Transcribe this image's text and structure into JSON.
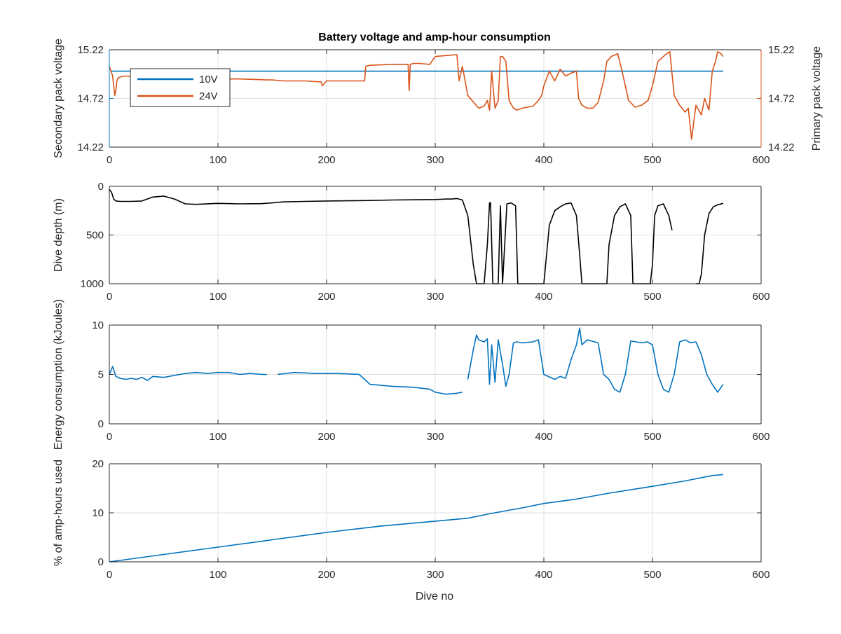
{
  "colors": {
    "blue": "#0072bd",
    "orange": "#d95319",
    "black": "#000000",
    "axis": "#262626",
    "grid": "#dfdfdf"
  },
  "title": "Battery voltage and amp-hour consumption",
  "xlabel": "Dive no",
  "chart_data": [
    {
      "type": "line",
      "title": "Battery voltage and amp-hour consumption",
      "xlim": [
        0,
        600
      ],
      "x_ticks": [
        "0",
        "100",
        "200",
        "300",
        "400",
        "500",
        "600"
      ],
      "ylabel_left": "Secondary pack voltage",
      "ylabel_right": "Primary pack voltage",
      "ylim_left": [
        14.22,
        15.22
      ],
      "ylim_right": [
        14.22,
        15.22
      ],
      "y_ticks_left": [
        "14.22",
        "14.72",
        "15.22"
      ],
      "y_ticks_right": [
        "14.22",
        "14.72",
        "15.22"
      ],
      "grid": true,
      "legend": {
        "location": "top-left",
        "entries": [
          "10V",
          "24V"
        ]
      },
      "series": [
        {
          "name": "10V",
          "axis": "left",
          "color": "#0072bd",
          "x": [
            1,
            565
          ],
          "y": [
            15.0,
            15.0
          ]
        },
        {
          "name": "24V",
          "axis": "right",
          "color": "#d95319",
          "x": [
            0,
            3,
            5,
            6,
            7,
            8,
            10,
            15,
            25,
            40,
            60,
            80,
            95,
            100,
            120,
            145,
            150,
            160,
            180,
            195,
            196,
            200,
            220,
            230,
            235,
            236,
            240,
            260,
            275,
            276,
            277,
            280,
            285,
            295,
            300,
            310,
            320,
            322,
            325,
            330,
            340,
            345,
            348,
            350,
            352,
            355,
            358,
            360,
            362,
            365,
            368,
            372,
            375,
            380,
            390,
            395,
            398,
            400,
            405,
            410,
            415,
            420,
            425,
            430,
            432,
            435,
            440,
            445,
            450,
            455,
            458,
            462,
            468,
            472,
            478,
            484,
            490,
            496,
            500,
            505,
            512,
            516,
            520,
            525,
            530,
            533,
            536,
            540,
            545,
            548,
            552,
            555,
            558,
            560,
            563,
            565
          ],
          "y": [
            15.05,
            14.95,
            14.75,
            14.8,
            14.9,
            14.93,
            14.94,
            14.95,
            14.94,
            14.93,
            14.94,
            14.93,
            14.91,
            14.92,
            14.92,
            14.91,
            14.91,
            14.9,
            14.9,
            14.89,
            14.85,
            14.9,
            14.9,
            14.9,
            14.9,
            15.05,
            15.06,
            15.07,
            15.07,
            14.8,
            15.07,
            15.08,
            15.08,
            15.07,
            15.15,
            15.16,
            15.17,
            14.9,
            15.05,
            14.75,
            14.62,
            14.64,
            14.7,
            14.6,
            15.0,
            14.62,
            14.7,
            15.15,
            15.15,
            15.1,
            14.7,
            14.62,
            14.6,
            14.62,
            14.64,
            14.7,
            14.75,
            14.85,
            15.0,
            14.9,
            15.02,
            14.95,
            14.98,
            15.0,
            14.72,
            14.65,
            14.62,
            14.62,
            14.68,
            14.9,
            15.1,
            15.15,
            15.18,
            15.0,
            14.7,
            14.63,
            14.65,
            14.7,
            14.85,
            15.1,
            15.17,
            15.2,
            14.75,
            14.65,
            14.58,
            14.62,
            14.3,
            14.65,
            14.55,
            14.72,
            14.6,
            15.0,
            15.1,
            15.2,
            15.18,
            15.15
          ]
        }
      ]
    },
    {
      "type": "line",
      "xlim": [
        0,
        600
      ],
      "x_ticks": [
        "0",
        "100",
        "200",
        "300",
        "400",
        "500",
        "600"
      ],
      "ylabel": "Dive depth (m)",
      "ylim": [
        0,
        1000
      ],
      "y_reversed": true,
      "y_ticks": [
        "0",
        "500",
        "1000"
      ],
      "grid": true,
      "series": [
        {
          "color": "#000000",
          "x": [
            0,
            2,
            4,
            6,
            10,
            20,
            30,
            40,
            50,
            60,
            70,
            80,
            100,
            120,
            140,
            150,
            160,
            180,
            200,
            220,
            240,
            260,
            280,
            300,
            310,
            315,
            320,
            325,
            330,
            335,
            338,
            340,
            342,
            345,
            348,
            350,
            351,
            353,
            355,
            358,
            360,
            362,
            366,
            370,
            374,
            376,
            378,
            380,
            385,
            390,
            395,
            398,
            400,
            405,
            410,
            415,
            420,
            425,
            430,
            433,
            435,
            440,
            445,
            450,
            455,
            458,
            460,
            465,
            470,
            475,
            480,
            482,
            485,
            490,
            495,
            498,
            500,
            502,
            505,
            510,
            515,
            518,
            null,
            540,
            543,
            545,
            548,
            552,
            556,
            560,
            565
          ],
          "y": [
            30,
            60,
            130,
            150,
            155,
            155,
            150,
            110,
            100,
            130,
            180,
            185,
            175,
            180,
            178,
            170,
            160,
            155,
            150,
            148,
            145,
            140,
            138,
            135,
            130,
            130,
            125,
            140,
            300,
            800,
            1000,
            1000,
            1000,
            1000,
            600,
            170,
            170,
            1000,
            1000,
            1000,
            200,
            1000,
            180,
            170,
            200,
            1000,
            1000,
            1000,
            1000,
            1000,
            1000,
            1000,
            1000,
            400,
            250,
            210,
            180,
            170,
            300,
            700,
            1000,
            1000,
            1000,
            1000,
            1000,
            1000,
            600,
            300,
            210,
            180,
            300,
            1000,
            1000,
            1000,
            1000,
            1000,
            800,
            300,
            200,
            180,
            300,
            450,
            null,
            1000,
            1000,
            900,
            500,
            280,
            210,
            190,
            175
          ]
        }
      ]
    },
    {
      "type": "line",
      "xlim": [
        0,
        600
      ],
      "x_ticks": [
        "0",
        "100",
        "200",
        "300",
        "400",
        "500",
        "600"
      ],
      "ylabel": "Energy consumption (kJoules)",
      "ylim": [
        0,
        10
      ],
      "y_ticks": [
        "0",
        "5",
        "10"
      ],
      "grid": true,
      "series": [
        {
          "color": "#0072bd",
          "x": [
            0,
            3,
            6,
            10,
            15,
            20,
            25,
            30,
            35,
            40,
            50,
            60,
            70,
            80,
            90,
            100,
            110,
            120,
            130,
            140,
            145,
            null,
            155,
            170,
            190,
            210,
            230,
            235,
            240,
            260,
            280,
            295,
            300,
            310,
            320,
            325,
            null,
            330,
            335,
            338,
            340,
            345,
            348,
            350,
            352,
            355,
            358,
            362,
            365,
            368,
            372,
            375,
            380,
            390,
            395,
            400,
            410,
            415,
            420,
            425,
            430,
            433,
            435,
            440,
            450,
            455,
            460,
            465,
            470,
            475,
            480,
            485,
            490,
            495,
            500,
            505,
            510,
            515,
            520,
            525,
            530,
            535,
            540,
            545,
            550,
            555,
            560,
            565
          ],
          "y": [
            5.0,
            5.8,
            4.8,
            4.6,
            4.5,
            4.6,
            4.5,
            4.7,
            4.4,
            4.8,
            4.7,
            4.9,
            5.1,
            5.2,
            5.1,
            5.2,
            5.2,
            5.0,
            5.1,
            5.0,
            5.0,
            null,
            5.0,
            5.2,
            5.1,
            5.1,
            5.0,
            4.5,
            4.0,
            3.8,
            3.7,
            3.5,
            3.2,
            3.0,
            3.1,
            3.2,
            null,
            4.5,
            7.5,
            9.0,
            8.5,
            8.3,
            8.6,
            4.0,
            8.0,
            4.2,
            8.5,
            6.0,
            3.8,
            5.0,
            8.2,
            8.3,
            8.2,
            8.3,
            8.5,
            5.0,
            4.5,
            4.8,
            4.6,
            6.5,
            8.0,
            9.7,
            8.0,
            8.5,
            8.2,
            5.0,
            4.5,
            3.5,
            3.2,
            5.0,
            8.4,
            8.3,
            8.2,
            8.3,
            8.0,
            5.0,
            3.5,
            3.2,
            5.0,
            8.3,
            8.5,
            8.2,
            8.3,
            7.0,
            5.0,
            4.0,
            3.2,
            4.0
          ]
        }
      ]
    },
    {
      "type": "line",
      "xlim": [
        0,
        600
      ],
      "x_ticks": [
        "0",
        "100",
        "200",
        "300",
        "400",
        "500",
        "600"
      ],
      "xlabel": "Dive no",
      "ylabel": "% of amp-hours used",
      "ylim": [
        0,
        20
      ],
      "y_ticks": [
        "0",
        "10",
        "20"
      ],
      "grid": true,
      "series": [
        {
          "color": "#0072bd",
          "x": [
            0,
            50,
            100,
            150,
            200,
            250,
            300,
            330,
            350,
            380,
            400,
            430,
            460,
            500,
            530,
            555,
            565
          ],
          "y": [
            0,
            1.5,
            3.0,
            4.5,
            6.0,
            7.3,
            8.3,
            8.9,
            9.8,
            11.0,
            11.9,
            12.8,
            14.0,
            15.4,
            16.5,
            17.6,
            17.8
          ]
        }
      ]
    }
  ]
}
